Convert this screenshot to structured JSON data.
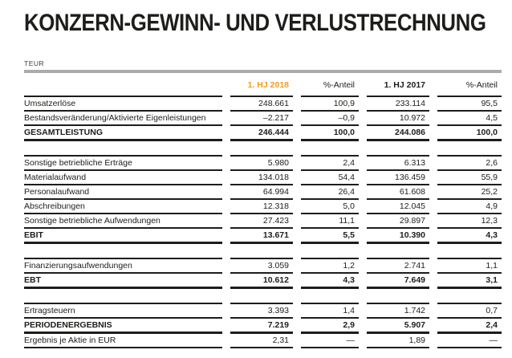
{
  "page": {
    "title": "KONZERN-GEWINN- UND VERLUSTRECHNUNG",
    "unit_label": "TEUR"
  },
  "colors": {
    "accent_orange": "#f39b1e",
    "text_black": "#1d1d1b",
    "rule_gray": "#ababab"
  },
  "table": {
    "columns": [
      {
        "label": "1. HJ 2018",
        "emphasis": "accent"
      },
      {
        "label": "%-Anteil",
        "emphasis": "normal"
      },
      {
        "label": "1. HJ 2017",
        "emphasis": "bold"
      },
      {
        "label": "%-Anteil",
        "emphasis": "normal"
      }
    ],
    "sections": [
      {
        "rows": [
          {
            "label": "Umsatzerlöse",
            "values": [
              "248.661",
              "100,9",
              "233.114",
              "95,5"
            ],
            "type": "item"
          },
          {
            "label": "Bestandsveränderung/Aktivierte Eigenleistungen",
            "values": [
              "–2.217",
              "–0,9",
              "10.972",
              "4,5"
            ],
            "type": "item"
          },
          {
            "label": "GESAMTLEISTUNG",
            "values": [
              "246.444",
              "100,0",
              "244.086",
              "100,0"
            ],
            "type": "total"
          }
        ]
      },
      {
        "rows": [
          {
            "label": "Sonstige betriebliche Erträge",
            "values": [
              "5.980",
              "2,4",
              "6.313",
              "2,6"
            ],
            "type": "item"
          },
          {
            "label": "Materialaufwand",
            "values": [
              "134.018",
              "54,4",
              "136.459",
              "55,9"
            ],
            "type": "item"
          },
          {
            "label": "Personalaufwand",
            "values": [
              "64.994",
              "26,4",
              "61.608",
              "25,2"
            ],
            "type": "item"
          },
          {
            "label": "Abschreibungen",
            "values": [
              "12.318",
              "5,0",
              "12.045",
              "4,9"
            ],
            "type": "item"
          },
          {
            "label": "Sonstige betriebliche Aufwendungen",
            "values": [
              "27.423",
              "11,1",
              "29.897",
              "12,3"
            ],
            "type": "item"
          },
          {
            "label": "EBIT",
            "values": [
              "13.671",
              "5,5",
              "10.390",
              "4,3"
            ],
            "type": "total"
          }
        ]
      },
      {
        "rows": [
          {
            "label": "Finanzierungsaufwendungen",
            "values": [
              "3.059",
              "1,2",
              "2.741",
              "1,1"
            ],
            "type": "item"
          },
          {
            "label": "EBT",
            "values": [
              "10.612",
              "4,3",
              "7.649",
              "3,1"
            ],
            "type": "total"
          }
        ]
      },
      {
        "rows": [
          {
            "label": "Ertragsteuern",
            "values": [
              "3.393",
              "1,4",
              "1.742",
              "0,7"
            ],
            "type": "item"
          },
          {
            "label": "PERIODENERGEBNIS",
            "values": [
              "7.219",
              "2,9",
              "5.907",
              "2,4"
            ],
            "type": "total"
          },
          {
            "label": "Ergebnis je Aktie in EUR",
            "values": [
              "2,31",
              "—",
              "1,89",
              "—"
            ],
            "type": "item-after-total",
            "underline": true
          }
        ]
      }
    ]
  }
}
